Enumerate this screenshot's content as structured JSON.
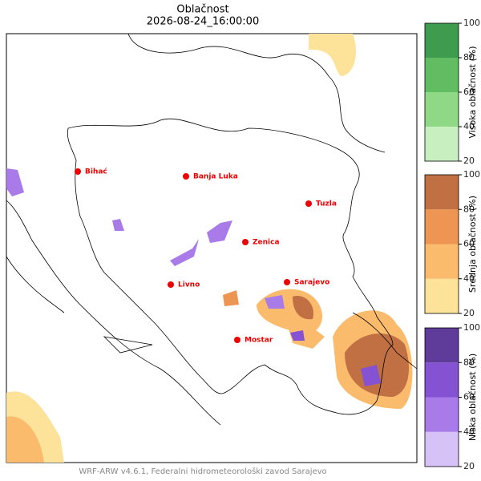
{
  "title": "Oblačnost",
  "subtitle": "2026-08-24_16:00:00",
  "cities": [
    "Bihać",
    "Banja Luka",
    "Tuzla",
    "Zenica",
    "Livno",
    "Sarajevo",
    "Mostar"
  ],
  "colorbars": [
    {
      "label": "Visoka oblačnost (%)",
      "levels": [
        20,
        40,
        60,
        80,
        100
      ],
      "colors": [
        "#c7efc0",
        "#8fd986",
        "#62bd62",
        "#3f9b4e"
      ],
      "ticks": [
        20,
        40,
        60,
        80,
        100
      ]
    },
    {
      "label": "Srednja oblačnost (%)",
      "levels": [
        20,
        40,
        60,
        80,
        100
      ],
      "colors": [
        "#fde29a",
        "#fbbb6c",
        "#ee9553",
        "#c07043"
      ],
      "ticks": [
        20,
        40,
        60,
        80,
        100
      ]
    },
    {
      "label": "Niska oblačnost (%)",
      "levels": [
        20,
        40,
        60,
        80,
        100
      ],
      "colors": [
        "#d7c2f7",
        "#a97be8",
        "#8552d3",
        "#5f3b9a"
      ],
      "ticks": [
        20,
        40,
        60,
        80,
        100
      ]
    }
  ],
  "footer": "WRF-ARW v4.6.1, Federalni hidrometeorološki zavod Sarajevo"
}
